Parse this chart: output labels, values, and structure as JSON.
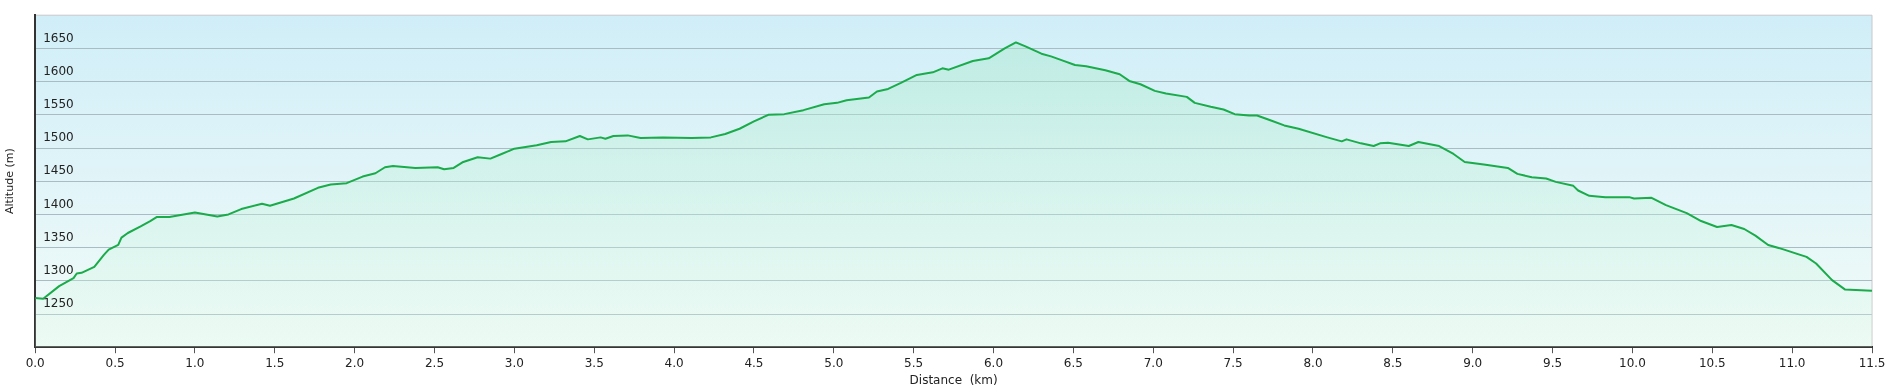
{
  "chart_data": {
    "type": "area",
    "xlabel": "Distance  (km)",
    "ylabel": "Altitude (m)",
    "xlim": [
      0,
      11.5
    ],
    "ylim": [
      1200,
      1700
    ],
    "grid": "y",
    "marker": "none",
    "line_style": "solid",
    "xticks": [
      {
        "value": 0,
        "label": "0.0"
      },
      0.5,
      {
        "value": 1,
        "label": "1.0"
      },
      1.5,
      {
        "value": 2,
        "label": "2.0"
      },
      2.5,
      {
        "value": 3,
        "label": "3.0"
      },
      3.5,
      {
        "value": 4,
        "label": "4.0"
      },
      4.5,
      {
        "value": 5,
        "label": "5.0"
      },
      5.5,
      {
        "value": 6,
        "label": "6.0"
      },
      6.5,
      {
        "value": 7,
        "label": "7.0"
      },
      7.5,
      {
        "value": 8,
        "label": "8.0"
      },
      8.5,
      {
        "value": 9,
        "label": "9.0"
      },
      9.5,
      {
        "value": 10,
        "label": "10.0"
      },
      10.5,
      {
        "value": 11,
        "label": "11.0"
      },
      11.5
    ],
    "yticks": [
      1250,
      1300,
      1350,
      1400,
      1450,
      1500,
      1550,
      1600,
      1650
    ],
    "series": [
      {
        "color": "#1aab4a",
        "x": [
          0,
          0.05,
          0.15,
          0.24,
          0.26,
          0.29,
          0.37,
          0.43,
          0.46,
          0.52,
          0.54,
          0.58,
          0.66,
          0.72,
          0.76,
          0.84,
          1.0,
          1.14,
          1.21,
          1.29,
          1.42,
          1.47,
          1.62,
          1.77,
          1.85,
          1.95,
          2.05,
          2.13,
          2.19,
          2.24,
          2.38,
          2.52,
          2.56,
          2.62,
          2.68,
          2.77,
          2.85,
          2.92,
          3.0,
          3.14,
          3.23,
          3.32,
          3.41,
          3.46,
          3.54,
          3.57,
          3.62,
          3.71,
          3.79,
          3.93,
          4.11,
          4.23,
          4.32,
          4.41,
          4.5,
          4.59,
          4.69,
          4.81,
          4.94,
          5.02,
          5.08,
          5.22,
          5.27,
          5.34,
          5.42,
          5.52,
          5.62,
          5.68,
          5.72,
          5.87,
          5.97,
          6.07,
          6.14,
          6.2,
          6.3,
          6.36,
          6.43,
          6.51,
          6.58,
          6.7,
          6.79,
          6.85,
          6.92,
          7.01,
          7.08,
          7.21,
          7.26,
          7.36,
          7.44,
          7.51,
          7.6,
          7.65,
          7.72,
          7.82,
          7.91,
          8.09,
          8.18,
          8.21,
          8.3,
          8.38,
          8.42,
          8.47,
          8.6,
          8.66,
          8.79,
          8.88,
          8.95,
          9.07,
          9.22,
          9.28,
          9.37,
          9.46,
          9.52,
          9.63,
          9.66,
          9.73,
          9.83,
          9.98,
          10.01,
          10.12,
          10.21,
          10.34,
          10.43,
          10.53,
          10.62,
          10.7,
          10.77,
          10.85,
          10.95,
          11.09,
          11.15,
          11.25,
          11.33,
          11.5
        ],
        "values": [
          1274,
          1273,
          1292,
          1304,
          1311,
          1312,
          1321,
          1339,
          1347,
          1354,
          1365,
          1372,
          1382,
          1390,
          1396,
          1396,
          1403,
          1397,
          1400,
          1408,
          1416,
          1413,
          1424,
          1440,
          1445,
          1447,
          1457,
          1462,
          1471,
          1473,
          1470,
          1471,
          1468,
          1470,
          1479,
          1486,
          1484,
          1491,
          1499,
          1504,
          1509,
          1510,
          1518,
          1513,
          1516,
          1514,
          1518,
          1519,
          1515,
          1516,
          1515,
          1516,
          1521,
          1529,
          1540,
          1550,
          1551,
          1557,
          1566,
          1568,
          1572,
          1576,
          1585,
          1589,
          1598,
          1610,
          1614,
          1620,
          1618,
          1631,
          1635,
          1650,
          1659,
          1653,
          1642,
          1638,
          1632,
          1625,
          1623,
          1617,
          1611,
          1601,
          1596,
          1586,
          1582,
          1577,
          1568,
          1562,
          1558,
          1551,
          1549,
          1549,
          1543,
          1534,
          1529,
          1516,
          1510,
          1513,
          1507,
          1503,
          1507,
          1508,
          1503,
          1509,
          1503,
          1491,
          1479,
          1475,
          1470,
          1461,
          1456,
          1454,
          1449,
          1443,
          1436,
          1428,
          1426,
          1426,
          1424,
          1425,
          1414,
          1402,
          1390,
          1381,
          1384,
          1378,
          1368,
          1354,
          1347,
          1336,
          1326,
          1301,
          1287,
          1285
        ]
      }
    ]
  }
}
